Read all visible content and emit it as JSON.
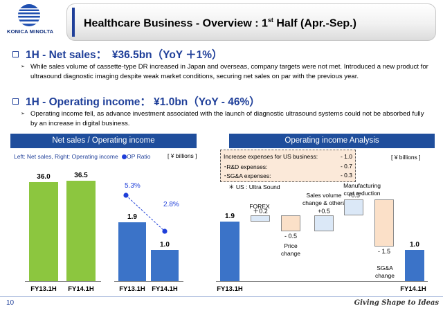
{
  "logo": {
    "text": "KONICA MINOLTA"
  },
  "title": {
    "main": "Healthcare Business - Overview : 1",
    "sup": "st",
    "rest": " Half (Apr.-Sep.)"
  },
  "sections": {
    "sales": {
      "heading": "1H - Net sales：　¥36.5bn（YoY ＋1%）",
      "bullet": "While sales volume of cassette-type DR increased in Japan and overseas, company targets were not met. Introduced a new product for ultrasound diagnostic imaging despite weak market conditions, securing net sales on par with the previous year."
    },
    "op": {
      "heading": "1H - Operating income：  ¥1.0bn（YoY - 46%）",
      "bullet": "Operating income fell, as advance investment associated with the launch of diagnostic ultrasound systems could not be absorbed fully by an increase in digital business."
    }
  },
  "left_panel": {
    "header": "Net sales / Operating income",
    "legend": "Left: Net sales,  Right: Operating income",
    "op_ratio": "OP Ratio",
    "unit": "[ ¥ billions ]"
  },
  "right_panel": {
    "header": "Operating income Analysis",
    "unit": "[ ¥ billions ]",
    "expenses": {
      "title_label": "Increase expenses for US business:",
      "title_value": "- 1.0",
      "rows": [
        {
          "label": "･R&D expenses:",
          "value": "- 0.7"
        },
        {
          "label": "･SG&A expenses:",
          "value": "- 0.3"
        }
      ],
      "note": "＊ US : Ultra Sound"
    }
  },
  "chart_data": [
    {
      "type": "bar",
      "categories": [
        "FY13.1H",
        "FY14.1H"
      ],
      "series": [
        {
          "name": "Net sales",
          "values": [
            36.0,
            36.5
          ],
          "labels": [
            "36.0",
            "36.5"
          ],
          "color": "#8cc63f"
        }
      ]
    },
    {
      "type": "bar",
      "categories": [
        "FY13.1H",
        "FY14.1H"
      ],
      "series": [
        {
          "name": "Operating income",
          "values": [
            1.9,
            1.0
          ],
          "labels": [
            "1.9",
            "1.0"
          ],
          "color": "#3b73c8"
        },
        {
          "name": "OP Ratio",
          "values": [
            5.3,
            2.8
          ],
          "labels": [
            "5.3%",
            "2.8%"
          ],
          "color": "#1f3fd9"
        }
      ]
    },
    {
      "type": "bar",
      "subtype": "waterfall",
      "steps": [
        {
          "label": "FY13.1H",
          "value": 1.9,
          "value_label": "1.9",
          "kind": "total",
          "color": "#3b73c8"
        },
        {
          "label": "FOREX",
          "value": 0.2,
          "value_label": "＋0.2",
          "kind": "delta",
          "color": "#dbe8f7"
        },
        {
          "label": "Price change",
          "value": -0.5,
          "value_label": "- 0.5",
          "kind": "delta",
          "color": "#fbe0c8"
        },
        {
          "label": "Sales volume change & others",
          "value": 0.5,
          "value_label": "+0.5",
          "kind": "delta",
          "color": "#dbe8f7"
        },
        {
          "label": "Manufacturing cost reduction",
          "value": 0.5,
          "value_label": "+0.5",
          "kind": "delta",
          "color": "#dbe8f7"
        },
        {
          "label": "SG&A change",
          "value": -1.5,
          "value_label": "- 1.5",
          "kind": "delta",
          "color": "#fbe0c8"
        },
        {
          "label": "FY14.1H",
          "value": 1.0,
          "value_label": "1.0",
          "kind": "total",
          "color": "#3b73c8"
        }
      ]
    }
  ],
  "footer": {
    "page": "10",
    "slogan": "Giving Shape to Ideas"
  }
}
